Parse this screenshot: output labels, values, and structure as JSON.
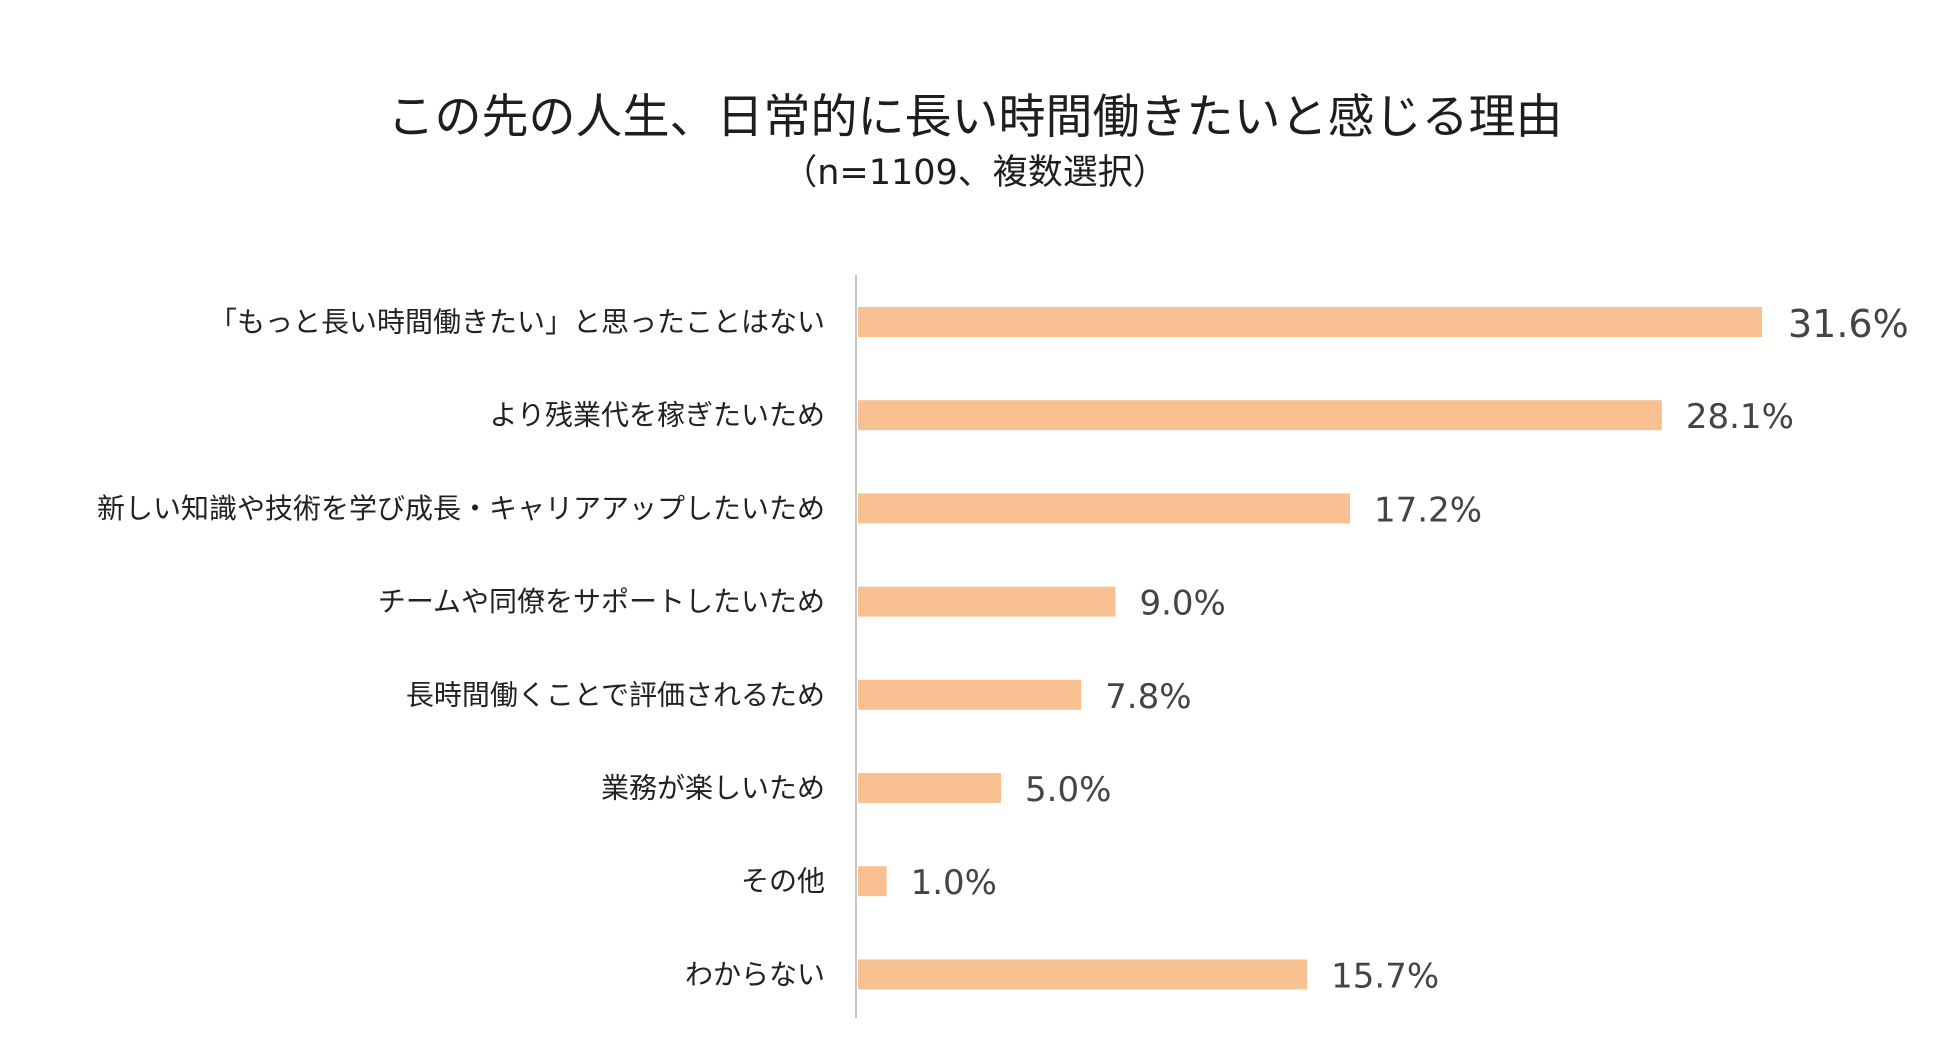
{
  "chart_data": {
    "type": "bar",
    "orientation": "horizontal",
    "title": "この先の人生、日常的に長い時間働きたいと感じる理由",
    "subtitle": "（n=1109、複数選択）",
    "categories": [
      "「もっと長い時間働きたい」と思ったことはない",
      "より残業代を稼ぎたいため",
      "新しい知識や技術を学び成長・キャリアアップしたいため",
      "チームや同僚をサポートしたいため",
      "長時間働くことで評価されるため",
      "業務が楽しいため",
      "その他",
      "わからない"
    ],
    "values": [
      31.6,
      28.1,
      17.2,
      9.0,
      7.8,
      5.0,
      1.0,
      15.7
    ],
    "value_labels": [
      "31.6%",
      "28.1%",
      "17.2%",
      "9.0%",
      "7.8%",
      "5.0%",
      "1.0%",
      "15.7%"
    ],
    "unit": "%",
    "xlim": [
      0,
      31.6
    ],
    "grid": false,
    "legend": "none",
    "highlight_index": 0,
    "colors": {
      "bar": "#F9C192",
      "axis": "#c8c8c8",
      "highlight_label": "#e0201b",
      "value_label": "#444444",
      "category_label": "#222222"
    }
  }
}
